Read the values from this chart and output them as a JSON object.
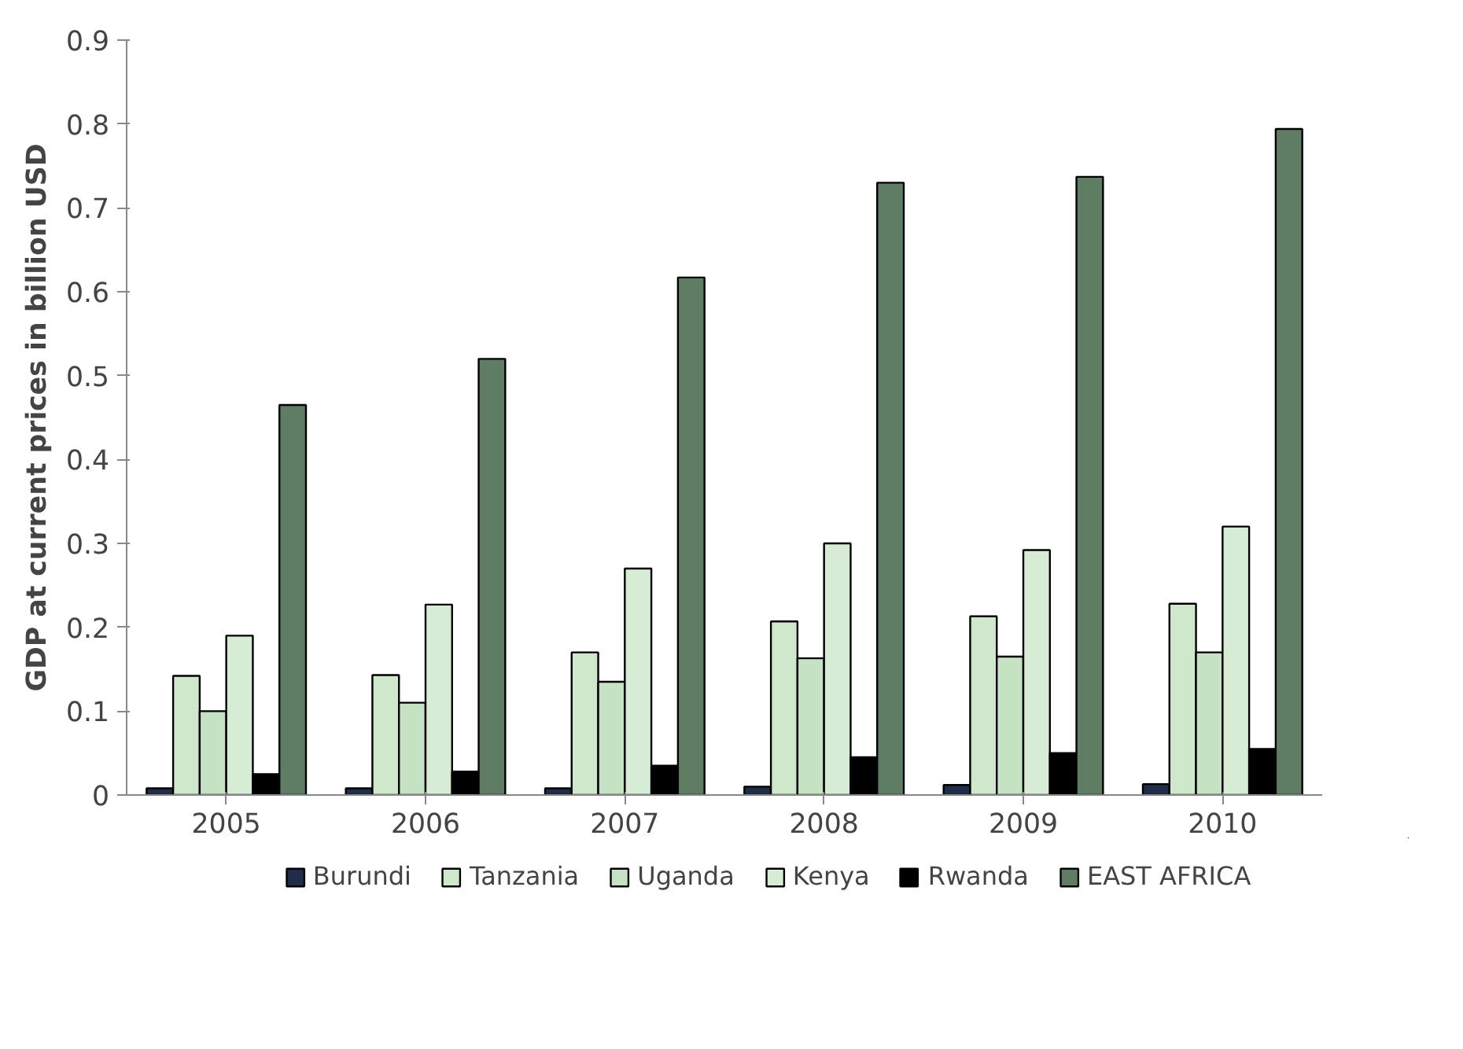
{
  "chart_data": {
    "type": "bar",
    "ylabel": "GDP at current prices in billion USD",
    "categories": [
      "2005",
      "2006",
      "2007",
      "2008",
      "2009",
      "2010"
    ],
    "series": [
      {
        "name": "Burundi",
        "color": "#1f2d4a",
        "values": [
          0.008,
          0.008,
          0.008,
          0.01,
          0.012,
          0.013
        ]
      },
      {
        "name": "Tanzania",
        "color": "#cfe8cc",
        "values": [
          0.142,
          0.143,
          0.17,
          0.207,
          0.213,
          0.228
        ]
      },
      {
        "name": "Uganda",
        "color": "#c5e3c2",
        "values": [
          0.1,
          0.11,
          0.135,
          0.163,
          0.165,
          0.17
        ]
      },
      {
        "name": "Kenya",
        "color": "#d7ecd4",
        "values": [
          0.19,
          0.227,
          0.27,
          0.3,
          0.292,
          0.32
        ]
      },
      {
        "name": "Rwanda",
        "color": "#000000",
        "values": [
          0.025,
          0.028,
          0.035,
          0.045,
          0.05,
          0.055
        ]
      },
      {
        "name": "EAST AFRICA",
        "color": "#5e7d63",
        "values": [
          0.465,
          0.52,
          0.617,
          0.73,
          0.737,
          0.794
        ]
      }
    ],
    "ylim": [
      0,
      0.9
    ],
    "yticks": [
      0,
      0.1,
      0.2,
      0.3,
      0.4,
      0.5,
      0.6,
      0.7,
      0.8,
      0.9
    ],
    "grid": false,
    "legend": "bottom"
  }
}
